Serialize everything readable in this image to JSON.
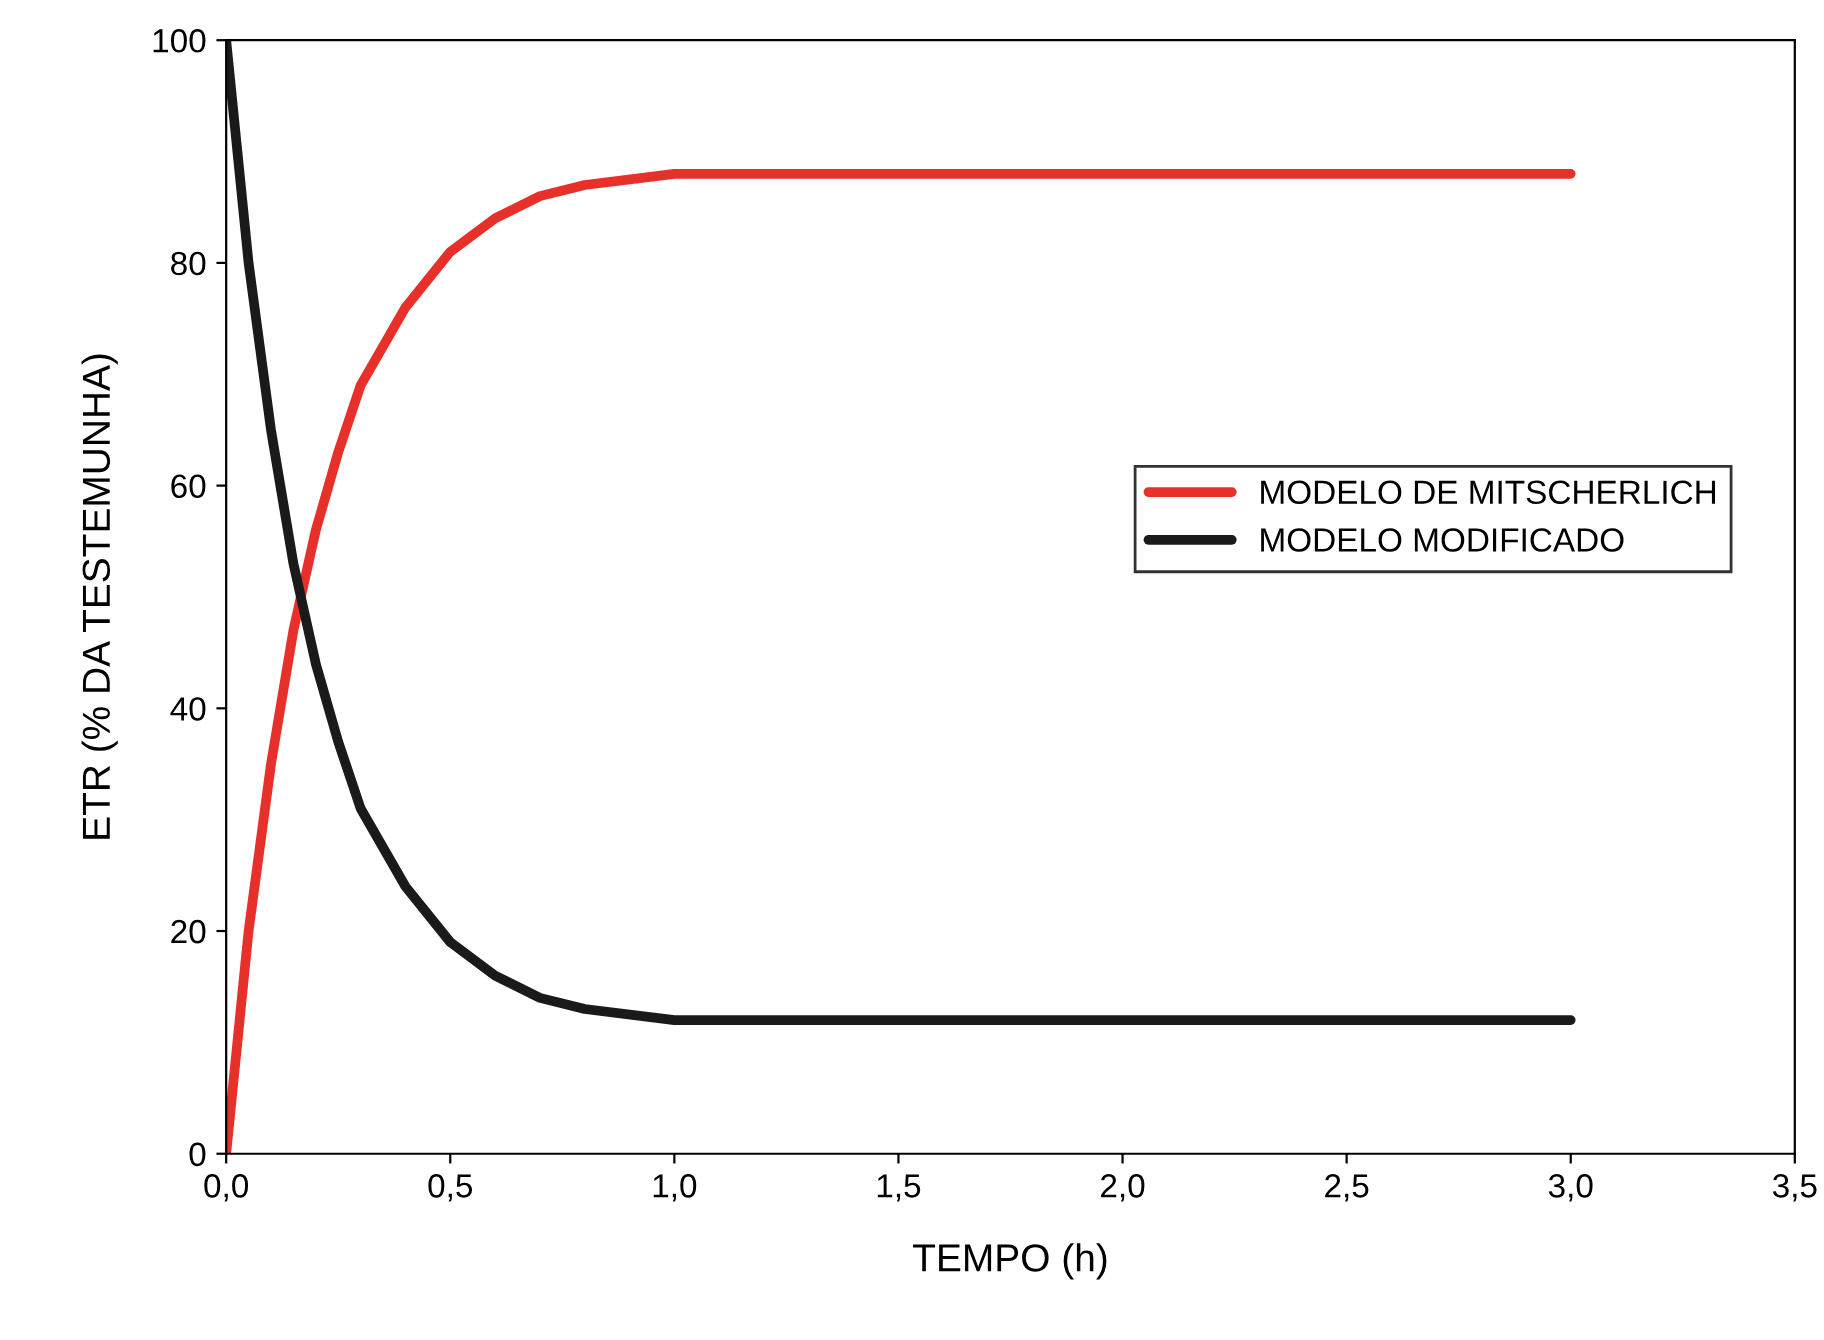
{
  "chart_data": {
    "type": "line",
    "xlabel": "TEMPO (h)",
    "ylabel": "ETR (% DA TESTEMUNHA)",
    "x": [
      0,
      0.05,
      0.1,
      0.15,
      0.2,
      0.25,
      0.3,
      0.4,
      0.5,
      0.6,
      0.7,
      0.8,
      1.0,
      1.2,
      1.5,
      2.0,
      2.5,
      3.0
    ],
    "series": [
      {
        "name": "MODELO DE MITSCHERLICH",
        "color": "#e8302a",
        "values": [
          0,
          20,
          35,
          47,
          56,
          63,
          69,
          76,
          81,
          84,
          86,
          87,
          88,
          88,
          88,
          88,
          88,
          88
        ]
      },
      {
        "name": "MODELO MODIFICADO",
        "color": "#1a1a1a",
        "values": [
          100,
          80,
          65,
          53,
          44,
          37,
          31,
          24,
          19,
          16,
          14,
          13,
          12,
          12,
          12,
          12,
          12,
          12
        ]
      }
    ],
    "xlim": [
      0,
      3.5
    ],
    "ylim": [
      0,
      100
    ],
    "xticks": [
      {
        "value": 0,
        "label": "0,0"
      },
      {
        "value": 0.5,
        "label": "0,5"
      },
      {
        "value": 1,
        "label": "1,0"
      },
      {
        "value": 1.5,
        "label": "1,5"
      },
      {
        "value": 2,
        "label": "2,0"
      },
      {
        "value": 2.5,
        "label": "2,5"
      },
      {
        "value": 3,
        "label": "3,0"
      },
      {
        "value": 3.5,
        "label": "3,5"
      }
    ],
    "yticks": [
      0,
      20,
      40,
      60,
      80,
      100
    ],
    "grid": false,
    "legend": "right",
    "line_style": "solid",
    "marker": "none"
  }
}
